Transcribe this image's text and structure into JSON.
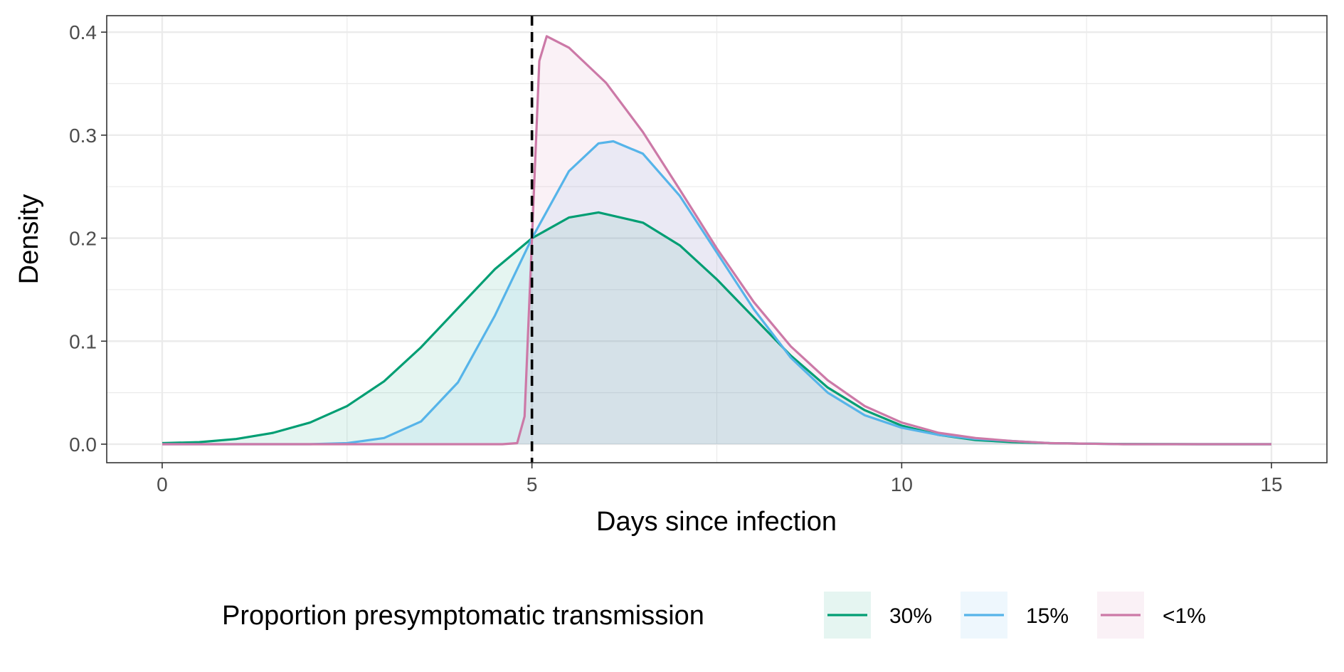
{
  "chart_data": {
    "type": "area",
    "xlabel": "Days since infection",
    "ylabel": "Density",
    "xlim": [
      -0.75,
      15.75
    ],
    "ylim": [
      -0.018,
      0.416
    ],
    "x_ticks": [
      0,
      5,
      10,
      15
    ],
    "x_tick_labels": [
      "0",
      "5",
      "10",
      "15"
    ],
    "y_ticks": [
      0.0,
      0.1,
      0.2,
      0.3,
      0.4
    ],
    "y_tick_labels": [
      "0.0",
      "0.1",
      "0.2",
      "0.3",
      "0.4"
    ],
    "grid": true,
    "vline": {
      "x": 5,
      "style": "dashed",
      "color": "#000000"
    },
    "legend": {
      "title": "Proportion presymptomatic transmission",
      "position": "bottom"
    },
    "series": [
      {
        "name": "30%",
        "color": "#009E73",
        "fill": "#009E73",
        "x": [
          0,
          0.5,
          1,
          1.5,
          2,
          2.5,
          3,
          3.5,
          4,
          4.5,
          5,
          5.5,
          5.9,
          6.5,
          7,
          7.5,
          8,
          8.5,
          9,
          9.5,
          10,
          10.5,
          11,
          11.5,
          12,
          12.5,
          13,
          14,
          15
        ],
        "y": [
          0.001,
          0.002,
          0.005,
          0.011,
          0.021,
          0.037,
          0.061,
          0.094,
          0.132,
          0.17,
          0.2,
          0.22,
          0.225,
          0.215,
          0.193,
          0.16,
          0.123,
          0.086,
          0.055,
          0.033,
          0.018,
          0.009,
          0.004,
          0.002,
          0.001,
          0.0005,
          0.0002,
          0.0,
          0.0
        ]
      },
      {
        "name": "15%",
        "color": "#56B4E9",
        "fill": "#56B4E9",
        "x": [
          0,
          1,
          2,
          2.5,
          3,
          3.5,
          4,
          4.5,
          5,
          5.5,
          5.9,
          6.1,
          6.5,
          7,
          7.5,
          8,
          8.5,
          9,
          9.5,
          10,
          10.5,
          11,
          12,
          13,
          14,
          15
        ],
        "y": [
          0.0,
          0.0,
          0.0,
          0.001,
          0.006,
          0.022,
          0.06,
          0.125,
          0.2,
          0.265,
          0.292,
          0.294,
          0.282,
          0.241,
          0.186,
          0.131,
          0.084,
          0.05,
          0.028,
          0.016,
          0.009,
          0.005,
          0.001,
          0.0,
          0.0,
          0.0
        ]
      },
      {
        "name": "<1%",
        "color": "#CC79A7",
        "fill": "#CC79A7",
        "x": [
          0,
          2,
          4,
          4.6,
          4.8,
          4.9,
          5.0,
          5.1,
          5.2,
          5.5,
          6,
          6.5,
          7,
          7.5,
          8,
          8.5,
          9,
          9.5,
          10,
          10.5,
          11,
          11.5,
          12,
          13,
          14,
          15
        ],
        "y": [
          0.0,
          0.0,
          0.0,
          0.0,
          0.001,
          0.027,
          0.2,
          0.372,
          0.396,
          0.385,
          0.351,
          0.303,
          0.247,
          0.19,
          0.138,
          0.095,
          0.062,
          0.037,
          0.021,
          0.011,
          0.006,
          0.003,
          0.001,
          0.0,
          0.0,
          0.0
        ]
      }
    ]
  }
}
